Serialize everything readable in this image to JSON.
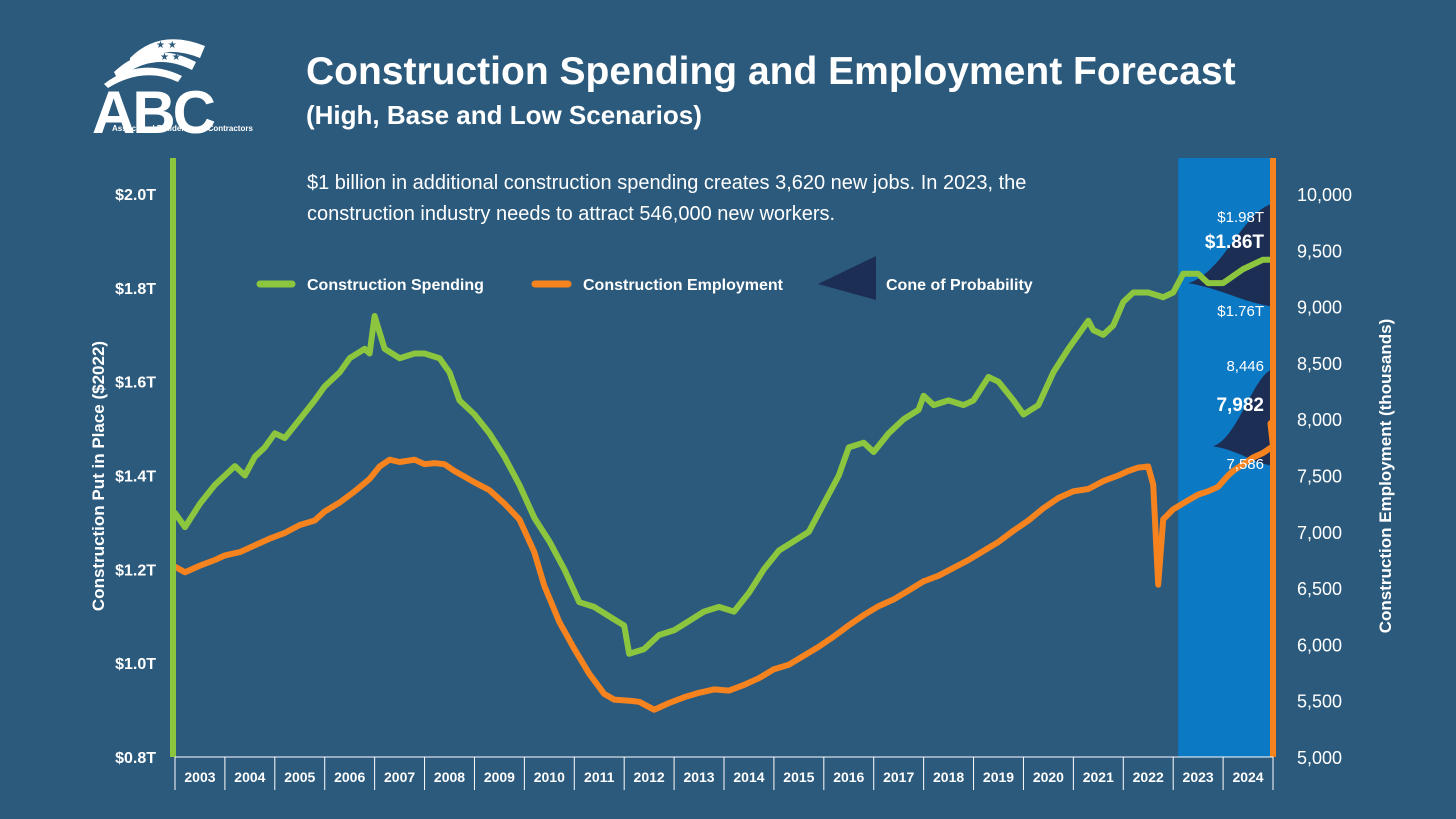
{
  "logo": {
    "text": "ABC",
    "subtext": "Associated Builders and Contractors"
  },
  "title": "Construction Spending and Employment Forecast",
  "subtitle": "(High, Base and Low Scenarios)",
  "note": "$1 billion in additional construction spending creates 3,620 new jobs. In 2023, the construction industry needs to attract 546,000 new workers.",
  "colors": {
    "background": "#2b5a7c",
    "spending": "#8cc63f",
    "employment": "#f7831f",
    "forecast_band": "#0b79c4",
    "cone": "#1d2e55"
  },
  "chart_data": {
    "type": "line",
    "x_categories": [
      "2003",
      "2004",
      "2005",
      "2006",
      "2007",
      "2008",
      "2009",
      "2010",
      "2011",
      "2012",
      "2013",
      "2014",
      "2015",
      "2016",
      "2017",
      "2018",
      "2019",
      "2020",
      "2021",
      "2022",
      "2023",
      "2024"
    ],
    "y_left": {
      "label": "Construction Put in Place ($2022)",
      "ticks": [
        "$0.8T",
        "$1.0T",
        "$1.2T",
        "$1.4T",
        "$1.6T",
        "$1.8T",
        "$2.0T"
      ],
      "range": [
        0.8,
        2.0
      ]
    },
    "y_right": {
      "label": "Construction Employment (thousands)",
      "ticks": [
        "5,000",
        "5,500",
        "6,000",
        "6,500",
        "7,000",
        "7,500",
        "8,000",
        "8,500",
        "9,000",
        "9,500",
        "10,000"
      ],
      "range": [
        5000,
        10000
      ]
    },
    "legend": [
      "Construction Spending",
      "Construction Employment",
      "Cone of Probability"
    ],
    "forecast_region": [
      "2023",
      "2024"
    ],
    "series": [
      {
        "name": "Construction Spending",
        "axis": "left",
        "points": [
          [
            2002.0,
            1.32
          ],
          [
            2002.2,
            1.29
          ],
          [
            2002.5,
            1.34
          ],
          [
            2002.8,
            1.38
          ],
          [
            2003.0,
            1.4
          ],
          [
            2003.2,
            1.42
          ],
          [
            2003.4,
            1.4
          ],
          [
            2003.6,
            1.44
          ],
          [
            2003.8,
            1.46
          ],
          [
            2004.0,
            1.49
          ],
          [
            2004.2,
            1.48
          ],
          [
            2004.5,
            1.52
          ],
          [
            2004.8,
            1.56
          ],
          [
            2005.0,
            1.59
          ],
          [
            2005.3,
            1.62
          ],
          [
            2005.5,
            1.65
          ],
          [
            2005.8,
            1.67
          ],
          [
            2005.9,
            1.66
          ],
          [
            2006.0,
            1.74
          ],
          [
            2006.2,
            1.67
          ],
          [
            2006.5,
            1.65
          ],
          [
            2006.8,
            1.66
          ],
          [
            2007.0,
            1.66
          ],
          [
            2007.3,
            1.65
          ],
          [
            2007.5,
            1.62
          ],
          [
            2007.7,
            1.56
          ],
          [
            2008.0,
            1.53
          ],
          [
            2008.3,
            1.49
          ],
          [
            2008.6,
            1.44
          ],
          [
            2008.9,
            1.38
          ],
          [
            2009.2,
            1.31
          ],
          [
            2009.5,
            1.26
          ],
          [
            2009.8,
            1.2
          ],
          [
            2010.1,
            1.13
          ],
          [
            2010.4,
            1.12
          ],
          [
            2010.7,
            1.1
          ],
          [
            2011.0,
            1.08
          ],
          [
            2011.1,
            1.02
          ],
          [
            2011.4,
            1.03
          ],
          [
            2011.7,
            1.06
          ],
          [
            2012.0,
            1.07
          ],
          [
            2012.3,
            1.09
          ],
          [
            2012.6,
            1.11
          ],
          [
            2012.9,
            1.12
          ],
          [
            2013.2,
            1.11
          ],
          [
            2013.5,
            1.15
          ],
          [
            2013.8,
            1.2
          ],
          [
            2014.1,
            1.24
          ],
          [
            2014.4,
            1.26
          ],
          [
            2014.7,
            1.28
          ],
          [
            2015.0,
            1.34
          ],
          [
            2015.3,
            1.4
          ],
          [
            2015.5,
            1.46
          ],
          [
            2015.8,
            1.47
          ],
          [
            2016.0,
            1.45
          ],
          [
            2016.3,
            1.49
          ],
          [
            2016.6,
            1.52
          ],
          [
            2016.9,
            1.54
          ],
          [
            2017.0,
            1.57
          ],
          [
            2017.2,
            1.55
          ],
          [
            2017.5,
            1.56
          ],
          [
            2017.8,
            1.55
          ],
          [
            2018.0,
            1.56
          ],
          [
            2018.3,
            1.61
          ],
          [
            2018.5,
            1.6
          ],
          [
            2018.8,
            1.56
          ],
          [
            2019.0,
            1.53
          ],
          [
            2019.3,
            1.55
          ],
          [
            2019.6,
            1.62
          ],
          [
            2019.9,
            1.67
          ],
          [
            2020.1,
            1.7
          ],
          [
            2020.3,
            1.73
          ],
          [
            2020.4,
            1.71
          ],
          [
            2020.6,
            1.7
          ],
          [
            2020.8,
            1.72
          ],
          [
            2021.0,
            1.77
          ],
          [
            2021.2,
            1.79
          ],
          [
            2021.5,
            1.79
          ],
          [
            2021.8,
            1.78
          ],
          [
            2022.0,
            1.79
          ],
          [
            2022.2,
            1.83
          ],
          [
            2022.5,
            1.83
          ],
          [
            2022.7,
            1.81
          ],
          [
            2022.9,
            1.81
          ],
          [
            2023.0,
            1.81
          ]
        ]
      },
      {
        "name": "Construction Employment",
        "axis": "right",
        "points": [
          [
            2002.0,
            6690
          ],
          [
            2002.2,
            6640
          ],
          [
            2002.5,
            6700
          ],
          [
            2002.8,
            6750
          ],
          [
            2003.0,
            6790
          ],
          [
            2003.3,
            6820
          ],
          [
            2003.6,
            6880
          ],
          [
            2003.9,
            6940
          ],
          [
            2004.2,
            6990
          ],
          [
            2004.5,
            7060
          ],
          [
            2004.8,
            7100
          ],
          [
            2005.0,
            7180
          ],
          [
            2005.3,
            7260
          ],
          [
            2005.6,
            7360
          ],
          [
            2005.9,
            7470
          ],
          [
            2006.1,
            7580
          ],
          [
            2006.3,
            7640
          ],
          [
            2006.5,
            7620
          ],
          [
            2006.8,
            7640
          ],
          [
            2007.0,
            7600
          ],
          [
            2007.2,
            7610
          ],
          [
            2007.4,
            7600
          ],
          [
            2007.6,
            7540
          ],
          [
            2007.8,
            7490
          ],
          [
            2008.0,
            7440
          ],
          [
            2008.3,
            7370
          ],
          [
            2008.6,
            7250
          ],
          [
            2008.9,
            7110
          ],
          [
            2009.2,
            6820
          ],
          [
            2009.4,
            6520
          ],
          [
            2009.7,
            6200
          ],
          [
            2010.0,
            5960
          ],
          [
            2010.3,
            5740
          ],
          [
            2010.6,
            5560
          ],
          [
            2010.8,
            5510
          ],
          [
            2011.1,
            5500
          ],
          [
            2011.3,
            5490
          ],
          [
            2011.6,
            5420
          ],
          [
            2011.9,
            5480
          ],
          [
            2012.2,
            5530
          ],
          [
            2012.5,
            5570
          ],
          [
            2012.8,
            5600
          ],
          [
            2013.1,
            5590
          ],
          [
            2013.4,
            5640
          ],
          [
            2013.7,
            5700
          ],
          [
            2014.0,
            5780
          ],
          [
            2014.3,
            5820
          ],
          [
            2014.6,
            5900
          ],
          [
            2014.9,
            5980
          ],
          [
            2015.2,
            6070
          ],
          [
            2015.5,
            6170
          ],
          [
            2015.8,
            6260
          ],
          [
            2016.1,
            6340
          ],
          [
            2016.4,
            6400
          ],
          [
            2016.7,
            6480
          ],
          [
            2017.0,
            6560
          ],
          [
            2017.3,
            6610
          ],
          [
            2017.6,
            6680
          ],
          [
            2017.9,
            6750
          ],
          [
            2018.2,
            6830
          ],
          [
            2018.5,
            6910
          ],
          [
            2018.8,
            7010
          ],
          [
            2019.1,
            7100
          ],
          [
            2019.4,
            7210
          ],
          [
            2019.7,
            7300
          ],
          [
            2020.0,
            7360
          ],
          [
            2020.3,
            7380
          ],
          [
            2020.6,
            7450
          ],
          [
            2020.9,
            7500
          ],
          [
            2021.1,
            7540
          ],
          [
            2021.3,
            7570
          ],
          [
            2021.5,
            7580
          ],
          [
            2021.6,
            7420
          ],
          [
            2021.7,
            6530
          ],
          [
            2021.8,
            7110
          ],
          [
            2022.0,
            7200
          ],
          [
            2022.3,
            7280
          ],
          [
            2022.5,
            7330
          ],
          [
            2022.7,
            7360
          ],
          [
            2022.9,
            7400
          ],
          [
            2023.0,
            7450
          ],
          [
            2023.1,
            7500
          ],
          [
            2023.2,
            7540
          ],
          [
            2023.4,
            7600
          ],
          [
            2023.6,
            7660
          ],
          [
            2023.8,
            7700
          ],
          [
            2024.0,
            7760
          ]
        ]
      }
    ],
    "forecast": {
      "spending": {
        "high": "$1.98T",
        "base": "$1.86T",
        "low": "$1.76T",
        "high_value": 1.98,
        "base_value": 1.86,
        "low_value": 1.76
      },
      "employment": {
        "high": "8,446",
        "base": "7,982",
        "low": "7,586",
        "high_value": 8446,
        "base_value": 7982,
        "low_value": 7586
      }
    }
  }
}
